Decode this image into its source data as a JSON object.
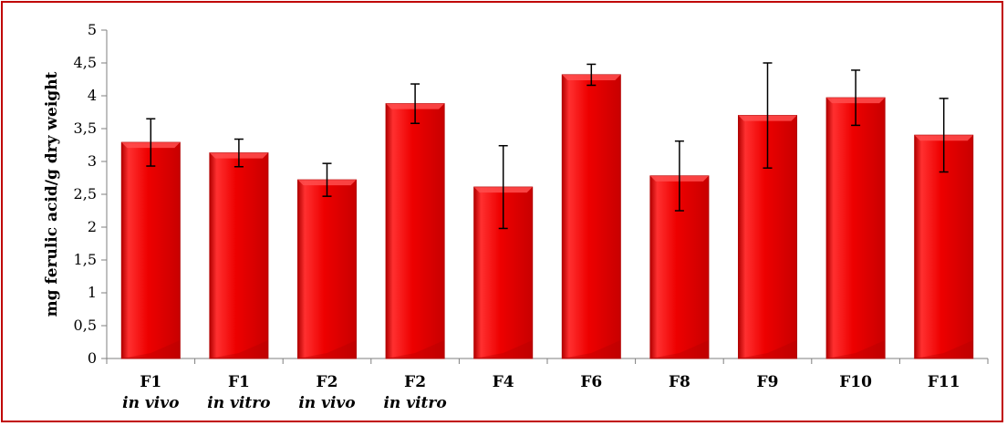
{
  "chart_data": {
    "type": "bar",
    "title": "",
    "xlabel": "",
    "ylabel": "mg ferulic acid/g dry weight",
    "ylim": [
      0,
      5
    ],
    "yticks": [
      "0",
      "0,5",
      "1",
      "1,5",
      "2",
      "2,5",
      "3",
      "3,5",
      "4",
      "4,5",
      "5"
    ],
    "categories": [
      {
        "line1": "F1",
        "line2": "in vivo"
      },
      {
        "line1": "F1",
        "line2": "in vitro"
      },
      {
        "line1": "F2",
        "line2": "in vivo"
      },
      {
        "line1": "F2",
        "line2": "in vitro"
      },
      {
        "line1": "F4",
        "line2": ""
      },
      {
        "line1": "F6",
        "line2": ""
      },
      {
        "line1": "F8",
        "line2": ""
      },
      {
        "line1": "F9",
        "line2": ""
      },
      {
        "line1": "F10",
        "line2": ""
      },
      {
        "line1": "F11",
        "line2": ""
      }
    ],
    "series": [
      {
        "values": [
          3.29,
          3.13,
          2.72,
          3.88,
          2.61,
          4.32,
          2.78,
          3.7,
          3.97,
          3.4
        ],
        "errors": [
          0.36,
          0.21,
          0.25,
          0.3,
          0.63,
          0.16,
          0.53,
          0.8,
          0.42,
          0.56
        ]
      }
    ],
    "grid": false,
    "legend": "none",
    "colors": {
      "bar": "#ee0000",
      "bar_dark": "#b30000",
      "bar_light": "#ff4d4d",
      "frame": "#c00000",
      "axis": "#7f7f7f"
    }
  }
}
